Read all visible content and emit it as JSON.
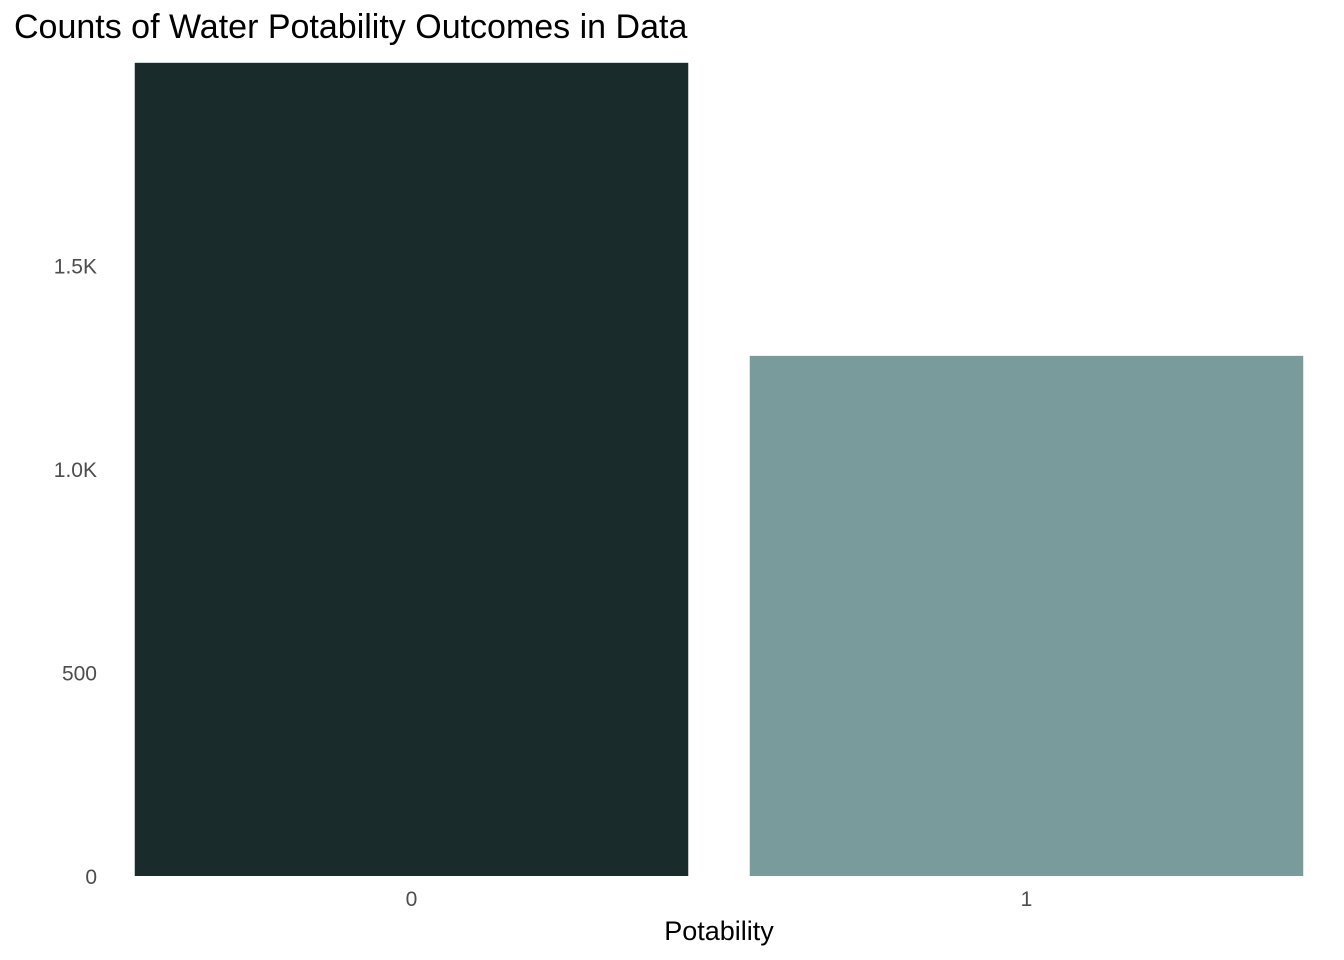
{
  "chart_data": {
    "type": "bar",
    "title": "Counts of Water Potability Outcomes in Data",
    "xlabel": "Potability",
    "ylabel": "",
    "categories": [
      "0",
      "1"
    ],
    "values": [
      1998,
      1278
    ],
    "colors": [
      "#192B2B",
      "#7A9B9B"
    ],
    "ylim": [
      0,
      2000
    ],
    "yticks": [
      0,
      500,
      1000,
      1500
    ],
    "ytick_labels": [
      "0",
      "500",
      "1.0K",
      "1.5K"
    ],
    "grid": false,
    "legend": "none"
  }
}
